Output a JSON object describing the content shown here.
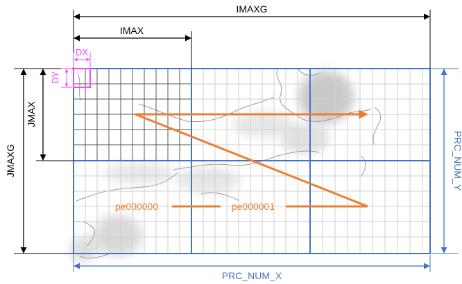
{
  "labels": {
    "imaxg": "IMAXG",
    "imax": "IMAX",
    "dx": "DX",
    "dy": "DY",
    "jmax": "JMAX",
    "jmaxg": "JMAXG",
    "prc_num_x": "PRC_NUM_X",
    "prc_num_y": "PRC_NUM_Y",
    "pe0": "pe000000",
    "pe1": "pe000001"
  },
  "colors": {
    "dimension": "#000000",
    "process": "#4472c4",
    "order": "#ed7d31",
    "cell": "#ff44ff",
    "fine_grid": "#555555",
    "light_grid": "#cfcfcf",
    "terrain": "#d8d8d8",
    "coast": "#9a9a9a"
  }
}
